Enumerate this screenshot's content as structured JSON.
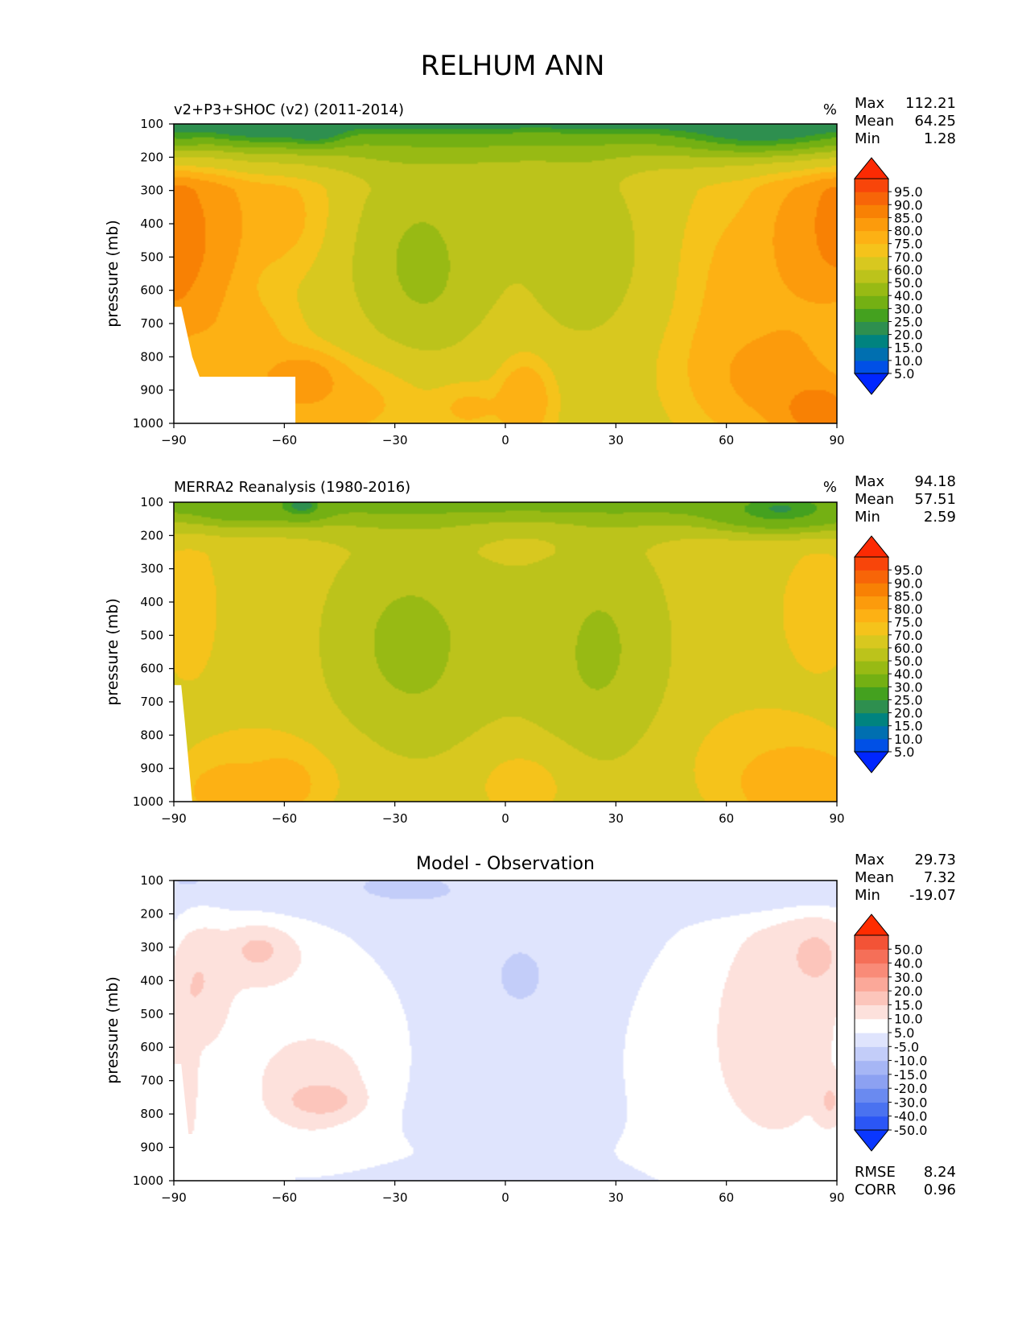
{
  "figure": {
    "title": "RELHUM ANN"
  },
  "palettes": {
    "abs": [
      "#0026ff",
      "#0050e6",
      "#006fb0",
      "#00837f",
      "#2e8f4f",
      "#44a11f",
      "#74b013",
      "#98ba14",
      "#bcc31b",
      "#d8c81f",
      "#f5c31b",
      "#fdb114",
      "#fc9b0c",
      "#f88104",
      "#f76508",
      "#f8450a",
      "#fc2a03"
    ],
    "diff": [
      "#0a37ff",
      "#2b56f5",
      "#4a72f0",
      "#6a8af0",
      "#8ca1f2",
      "#a6b6f5",
      "#c3cdf9",
      "#dfe4fd",
      "#ffffff",
      "#fde1dc",
      "#fcc5bb",
      "#fba899",
      "#f98b78",
      "#f56f58",
      "#f35336",
      "#ff2c00"
    ]
  },
  "chart_data": [
    {
      "id": "model",
      "type": "contour",
      "title_left": "v2+P3+SHOC (v2) (2011-2014)",
      "title_center": "",
      "units": "%",
      "xlabel": "",
      "ylabel": "pressure (mb)",
      "xlim": [
        -90,
        90
      ],
      "ylim": [
        1000,
        100
      ],
      "xticks": [
        -90,
        -60,
        -30,
        0,
        30,
        60,
        90
      ],
      "xtick_labels": [
        "−90",
        "−60",
        "−30",
        "0",
        "30",
        "60",
        "90"
      ],
      "yticks": [
        100,
        200,
        300,
        400,
        500,
        600,
        700,
        800,
        900,
        1000
      ],
      "stats": [
        {
          "label": "Max",
          "value": "112.21"
        },
        {
          "label": "Mean",
          "value": "64.25"
        },
        {
          "label": "Min",
          "value": "1.28"
        }
      ],
      "colorbar": {
        "palette": "abs",
        "levels": [
          5.0,
          10.0,
          15.0,
          20.0,
          25.0,
          30.0,
          40.0,
          50.0,
          60.0,
          70.0,
          75.0,
          80.0,
          85.0,
          90.0,
          95.0
        ],
        "labels": [
          "5.0",
          "10.0",
          "15.0",
          "20.0",
          "25.0",
          "30.0",
          "40.0",
          "50.0",
          "60.0",
          "70.0",
          "75.0",
          "80.0",
          "85.0",
          "90.0",
          "95.0"
        ]
      },
      "surface": [
        [
          -90,
          650
        ],
        [
          -88,
          650
        ],
        [
          -85,
          800
        ],
        [
          -83,
          860
        ],
        [
          -57,
          860
        ],
        [
          -57,
          1000
        ],
        [
          -90,
          1000
        ]
      ],
      "field": [
        {
          "lat": -90,
          "p": 450,
          "v": 97,
          "rx": 6,
          "ry": 220
        },
        {
          "lat": -82,
          "p": 420,
          "v": 92,
          "rx": 10,
          "ry": 230
        },
        {
          "lat": -55,
          "p": 870,
          "v": 90,
          "rx": 9,
          "ry": 70
        },
        {
          "lat": -75,
          "p": 780,
          "v": 84,
          "rx": 14,
          "ry": 150
        },
        {
          "lat": -48,
          "p": 930,
          "v": 82,
          "rx": 20,
          "ry": 100
        },
        {
          "lat": -65,
          "p": 380,
          "v": 82,
          "rx": 14,
          "ry": 140
        },
        {
          "lat": 90,
          "p": 400,
          "v": 96,
          "rx": 8,
          "ry": 200
        },
        {
          "lat": 85,
          "p": 960,
          "v": 96,
          "rx": 10,
          "ry": 80
        },
        {
          "lat": 72,
          "p": 850,
          "v": 88,
          "rx": 18,
          "ry": 160
        },
        {
          "lat": 78,
          "p": 450,
          "v": 87,
          "rx": 10,
          "ry": 220
        },
        {
          "lat": 62,
          "p": 600,
          "v": 80,
          "rx": 10,
          "ry": 250
        },
        {
          "lat": 5,
          "p": 930,
          "v": 85,
          "rx": 6,
          "ry": 100
        },
        {
          "lat": -10,
          "p": 950,
          "v": 80,
          "rx": 8,
          "ry": 60
        },
        {
          "lat": 8,
          "p": 110,
          "v": 78,
          "rx": 6,
          "ry": 30
        },
        {
          "lat": -22,
          "p": 510,
          "v": 34,
          "rx": 7,
          "ry": 120
        },
        {
          "lat": -22,
          "p": 500,
          "v": 45,
          "rx": 17,
          "ry": 240
        },
        {
          "lat": 21,
          "p": 480,
          "v": 42,
          "rx": 11,
          "ry": 190
        },
        {
          "lat": -2,
          "p": 360,
          "v": 56,
          "rx": 22,
          "ry": 200
        },
        {
          "lat": -70,
          "p": 110,
          "v": 10,
          "rx": 14,
          "ry": 45
        },
        {
          "lat": -52,
          "p": 115,
          "v": 4,
          "rx": 7,
          "ry": 40
        },
        {
          "lat": 72,
          "p": 120,
          "v": 3,
          "rx": 18,
          "ry": 50
        },
        {
          "lat": -88,
          "p": 110,
          "v": 25,
          "rx": 5,
          "ry": 50
        }
      ],
      "field_base": 68,
      "field_strat": {
        "p_top": 100,
        "p_bottom": 300,
        "v_top": 20
      }
    },
    {
      "id": "obs",
      "type": "contour",
      "title_left": "MERRA2 Reanalysis (1980-2016)",
      "title_center": "",
      "units": "%",
      "xlabel": "",
      "ylabel": "pressure (mb)",
      "xlim": [
        -90,
        90
      ],
      "ylim": [
        1000,
        100
      ],
      "xticks": [
        -90,
        -60,
        -30,
        0,
        30,
        60,
        90
      ],
      "xtick_labels": [
        "−90",
        "−60",
        "−30",
        "0",
        "30",
        "60",
        "90"
      ],
      "yticks": [
        100,
        200,
        300,
        400,
        500,
        600,
        700,
        800,
        900,
        1000
      ],
      "stats": [
        {
          "label": "Max",
          "value": "94.18"
        },
        {
          "label": "Mean",
          "value": "57.51"
        },
        {
          "label": "Min",
          "value": "2.59"
        }
      ],
      "colorbar": {
        "palette": "abs",
        "levels": [
          5.0,
          10.0,
          15.0,
          20.0,
          25.0,
          30.0,
          40.0,
          50.0,
          60.0,
          70.0,
          75.0,
          80.0,
          85.0,
          90.0,
          95.0
        ],
        "labels": [
          "5.0",
          "10.0",
          "15.0",
          "20.0",
          "25.0",
          "30.0",
          "40.0",
          "50.0",
          "60.0",
          "70.0",
          "75.0",
          "80.0",
          "85.0",
          "90.0",
          "95.0"
        ]
      },
      "surface": [
        [
          -90,
          650
        ],
        [
          -88,
          650
        ],
        [
          -87,
          760
        ],
        [
          -85,
          1000
        ],
        [
          -90,
          1000
        ]
      ],
      "field": [
        {
          "lat": -60,
          "p": 950,
          "v": 85,
          "rx": 6,
          "ry": 60
        },
        {
          "lat": -75,
          "p": 970,
          "v": 87,
          "rx": 8,
          "ry": 60
        },
        {
          "lat": -65,
          "p": 920,
          "v": 78,
          "rx": 18,
          "ry": 110
        },
        {
          "lat": 80,
          "p": 950,
          "v": 86,
          "rx": 14,
          "ry": 100
        },
        {
          "lat": 70,
          "p": 880,
          "v": 76,
          "rx": 16,
          "ry": 130
        },
        {
          "lat": 85,
          "p": 430,
          "v": 76,
          "rx": 8,
          "ry": 150
        },
        {
          "lat": -86,
          "p": 420,
          "v": 77,
          "rx": 6,
          "ry": 170
        },
        {
          "lat": 5,
          "p": 930,
          "v": 76,
          "rx": 12,
          "ry": 100
        },
        {
          "lat": 5,
          "p": 150,
          "v": 73,
          "rx": 14,
          "ry": 90
        },
        {
          "lat": -24,
          "p": 500,
          "v": 26,
          "rx": 5,
          "ry": 40
        },
        {
          "lat": -24,
          "p": 520,
          "v": 34,
          "rx": 11,
          "ry": 150
        },
        {
          "lat": -24,
          "p": 520,
          "v": 45,
          "rx": 21,
          "ry": 280
        },
        {
          "lat": 24,
          "p": 530,
          "v": 38,
          "rx": 11,
          "ry": 200
        },
        {
          "lat": 24,
          "p": 530,
          "v": 48,
          "rx": 17,
          "ry": 280
        },
        {
          "lat": 0,
          "p": 450,
          "v": 58,
          "rx": 26,
          "ry": 250
        },
        {
          "lat": -70,
          "p": 110,
          "v": 20,
          "rx": 12,
          "ry": 40
        },
        {
          "lat": -55,
          "p": 110,
          "v": 3,
          "rx": 6,
          "ry": 35
        },
        {
          "lat": 75,
          "p": 120,
          "v": 5,
          "rx": 16,
          "ry": 50
        }
      ],
      "field_base": 67,
      "field_strat": {
        "p_top": 100,
        "p_bottom": 260,
        "v_top": 30
      }
    },
    {
      "id": "diff",
      "type": "contour",
      "title_left": "",
      "title_center": "Model - Observation",
      "units": "",
      "xlabel": "",
      "ylabel": "pressure (mb)",
      "xlim": [
        -90,
        90
      ],
      "ylim": [
        1000,
        100
      ],
      "xticks": [
        -90,
        -60,
        -30,
        0,
        30,
        60,
        90
      ],
      "xtick_labels": [
        "−90",
        "−60",
        "−30",
        "0",
        "30",
        "60",
        "90"
      ],
      "yticks": [
        100,
        200,
        300,
        400,
        500,
        600,
        700,
        800,
        900,
        1000
      ],
      "stats": [
        {
          "label": "Max",
          "value": "29.73"
        },
        {
          "label": "Mean",
          "value": "7.32"
        },
        {
          "label": "Min",
          "value": "-19.07"
        }
      ],
      "extra_stats": [
        {
          "label": "RMSE",
          "value": "8.24"
        },
        {
          "label": "CORR",
          "value": "0.96"
        }
      ],
      "colorbar": {
        "palette": "diff",
        "levels": [
          -50.0,
          -40.0,
          -30.0,
          -20.0,
          -15.0,
          -10.0,
          -5.0,
          5.0,
          10.0,
          15.0,
          20.0,
          30.0,
          40.0,
          50.0
        ],
        "labels": [
          "-50.0",
          "-40.0",
          "-30.0",
          "-20.0",
          "-15.0",
          "-10.0",
          "-5.0",
          "5.0",
          "10.0",
          "15.0",
          "20.0",
          "30.0",
          "40.0",
          "50.0"
        ]
      },
      "surface": [
        [
          -90,
          650
        ],
        [
          -88,
          650
        ],
        [
          -86,
          860
        ],
        [
          -57,
          860
        ],
        [
          -57,
          1000
        ],
        [
          -90,
          1000
        ]
      ],
      "field": [
        {
          "lat": -83,
          "p": 420,
          "v": 23,
          "rx": 7,
          "ry": 150
        },
        {
          "lat": -87,
          "p": 700,
          "v": 22,
          "rx": 3,
          "ry": 200
        },
        {
          "lat": -50,
          "p": 760,
          "v": 28,
          "rx": 8,
          "ry": 40
        },
        {
          "lat": -52,
          "p": 720,
          "v": 21,
          "rx": 12,
          "ry": 120
        },
        {
          "lat": -67,
          "p": 310,
          "v": 24,
          "rx": 6,
          "ry": 50
        },
        {
          "lat": -68,
          "p": 330,
          "v": 18,
          "rx": 13,
          "ry": 90
        },
        {
          "lat": -60,
          "p": 600,
          "v": 12,
          "rx": 32,
          "ry": 350
        },
        {
          "lat": 84,
          "p": 330,
          "v": 24,
          "rx": 8,
          "ry": 100
        },
        {
          "lat": 88,
          "p": 760,
          "v": 24,
          "rx": 3,
          "ry": 60
        },
        {
          "lat": 75,
          "p": 500,
          "v": 17,
          "rx": 18,
          "ry": 400
        },
        {
          "lat": 62,
          "p": 650,
          "v": 12,
          "rx": 28,
          "ry": 380
        },
        {
          "lat": 4,
          "p": 380,
          "v": -13,
          "rx": 3,
          "ry": 40
        },
        {
          "lat": 4,
          "p": 400,
          "v": -8,
          "rx": 10,
          "ry": 120
        },
        {
          "lat": -27,
          "p": 120,
          "v": -13,
          "rx": 10,
          "ry": 30
        },
        {
          "lat": -30,
          "p": 130,
          "v": -7,
          "rx": 28,
          "ry": 60
        },
        {
          "lat": 65,
          "p": 140,
          "v": -7,
          "rx": 25,
          "ry": 60
        },
        {
          "lat": -85,
          "p": 105,
          "v": -9,
          "rx": 10,
          "ry": 25
        },
        {
          "lat": 5,
          "p": 100,
          "v": 8,
          "rx": 14,
          "ry": 30
        },
        {
          "lat": 0,
          "p": 930,
          "v": 7,
          "rx": 40,
          "ry": 100
        }
      ],
      "field_base": 0,
      "field_strat": null
    }
  ]
}
